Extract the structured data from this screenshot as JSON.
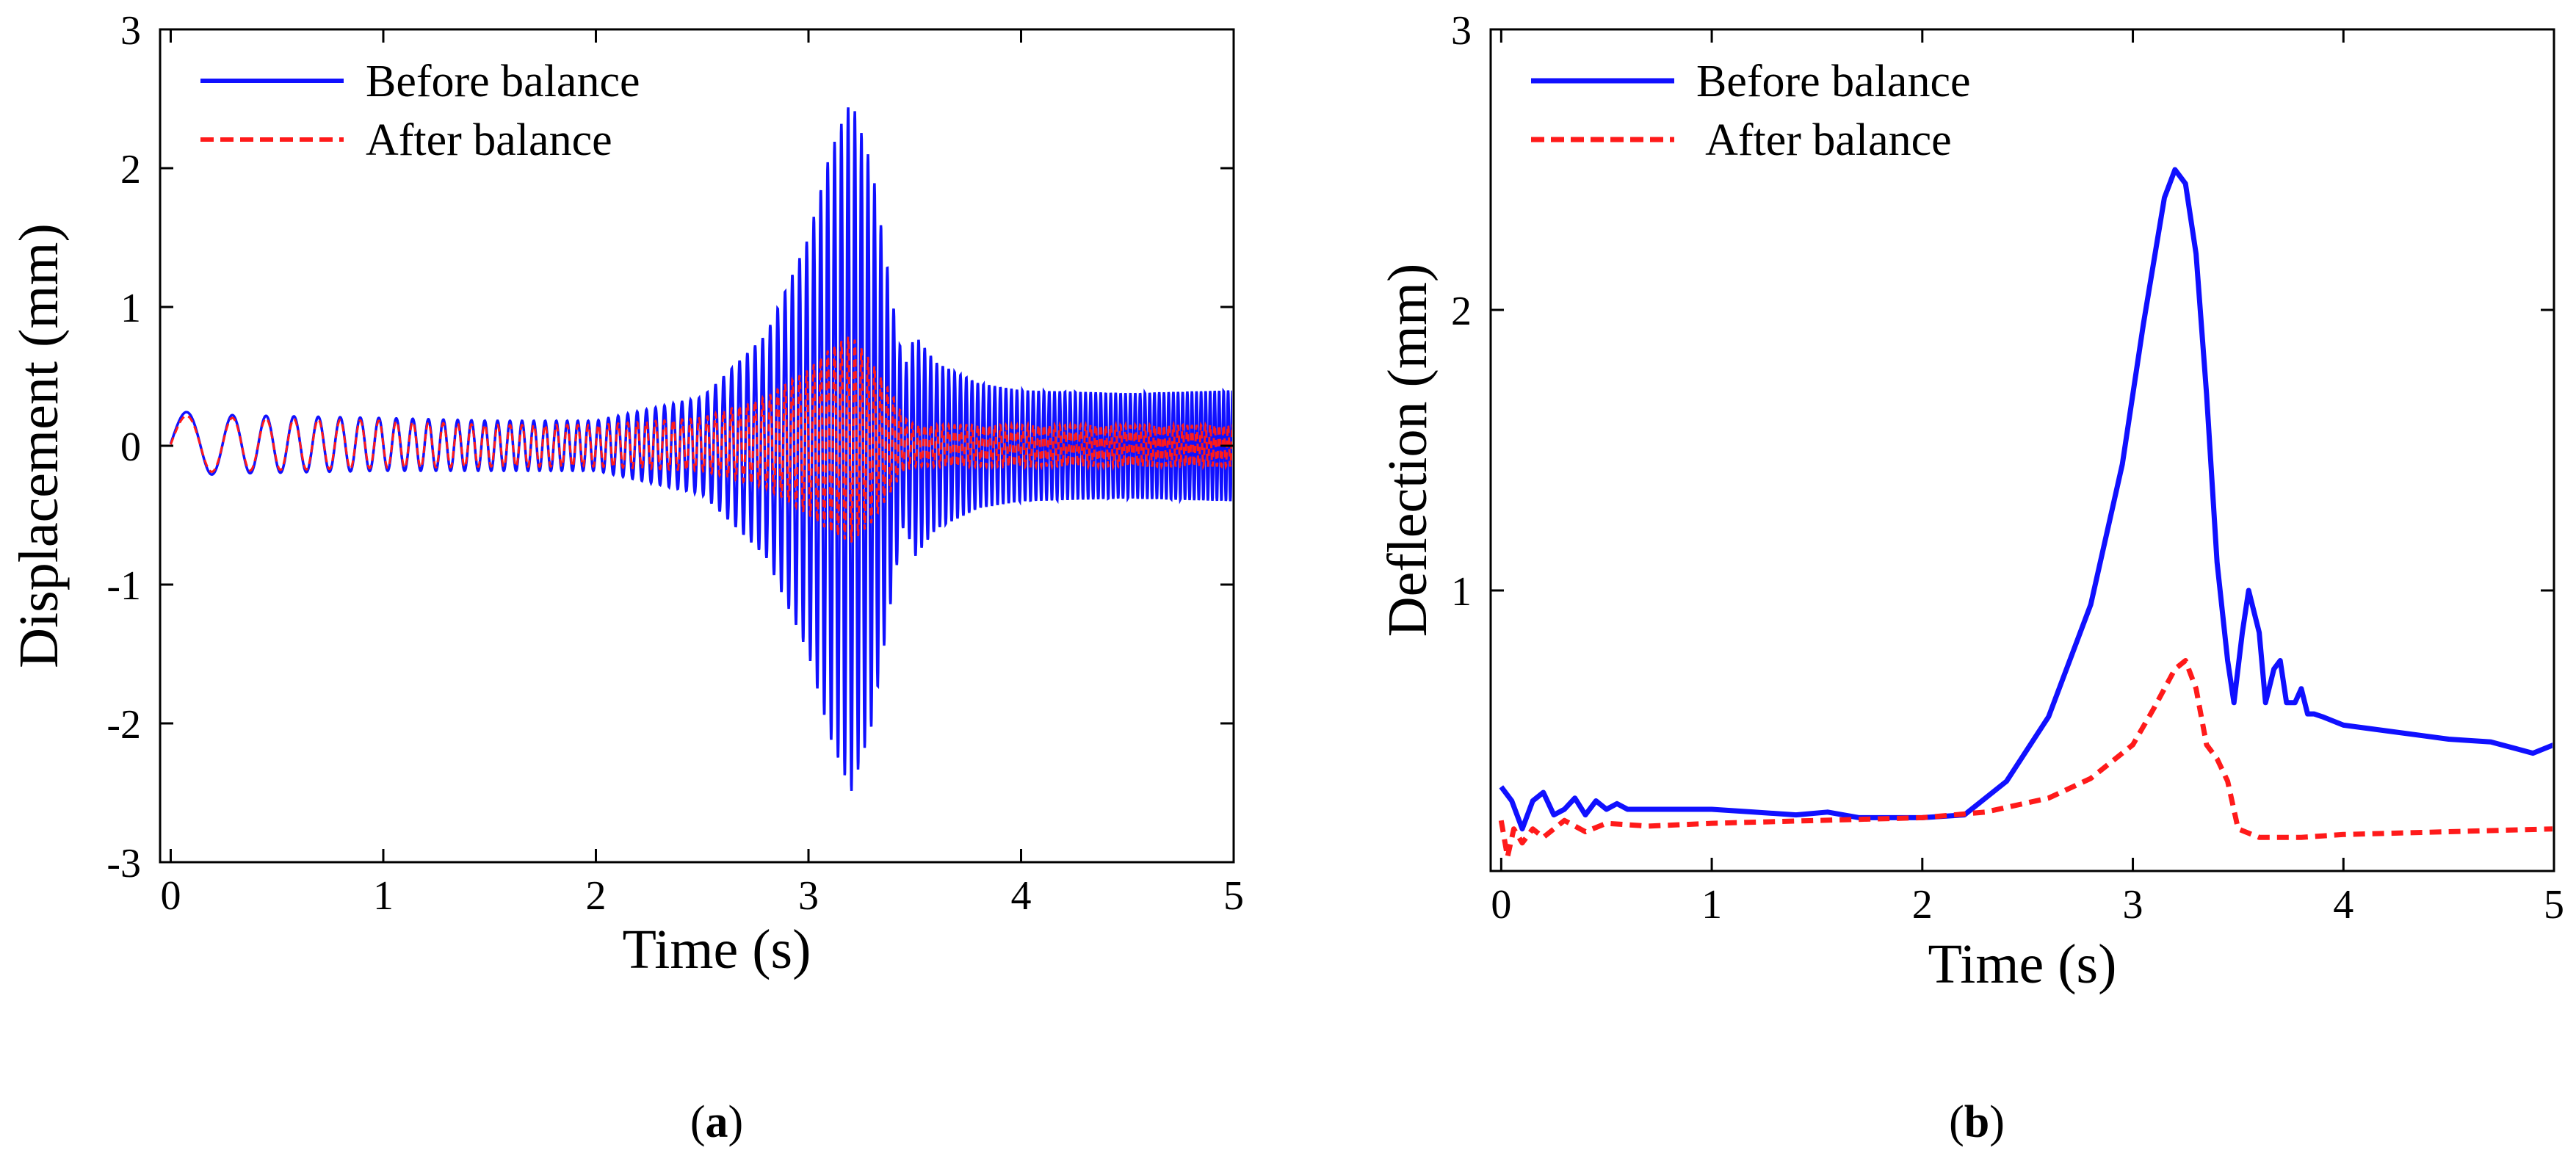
{
  "figure": {
    "panel_labels": [
      {
        "open": "(",
        "letter": "a",
        "close": ")"
      },
      {
        "open": "(",
        "letter": "b",
        "close": ")"
      }
    ]
  },
  "colors": {
    "before": "#1010ff",
    "after": "#ff1a1a",
    "axis": "#000000"
  },
  "chart_data": [
    {
      "type": "line",
      "panel": "a",
      "title": "",
      "xlabel": "Time (s)",
      "ylabel": "Displacement  (mm)",
      "xlim": [
        -0.05,
        5
      ],
      "ylim": [
        -3,
        3
      ],
      "xticks": [
        0,
        1,
        2,
        3,
        4,
        5
      ],
      "yticks": [
        -3,
        -2,
        -1,
        0,
        1,
        2,
        3
      ],
      "legend": {
        "position": "top-left",
        "entries": [
          {
            "label": "Before balance",
            "style": "solid",
            "color": "#1010ff"
          },
          {
            "label": "After balance",
            "style": "dashed",
            "color": "#ff1a1a"
          }
        ]
      },
      "series": [
        {
          "name": "Before balance",
          "kind": "oscillation_envelope",
          "envelope_time": [
            0,
            0.3,
            1,
            1.5,
            2,
            2.5,
            2.8,
            3.0,
            3.1,
            3.2,
            3.3,
            3.4,
            3.45,
            3.5,
            3.6,
            3.8,
            4.0,
            4.5,
            5.0
          ],
          "upper": [
            0.25,
            0.22,
            0.2,
            0.18,
            0.18,
            0.35,
            0.8,
            1.5,
            2.1,
            2.5,
            2.0,
            1.0,
            0.55,
            0.8,
            0.6,
            0.45,
            0.4,
            0.38,
            0.4
          ],
          "lower": [
            -0.22,
            -0.2,
            -0.18,
            -0.18,
            -0.18,
            -0.35,
            -0.8,
            -1.5,
            -2.1,
            -2.5,
            -2.0,
            -1.0,
            -0.55,
            -0.8,
            -0.6,
            -0.45,
            -0.4,
            -0.38,
            -0.4
          ]
        },
        {
          "name": "After balance",
          "kind": "oscillation_envelope",
          "envelope_time": [
            0,
            0.3,
            1,
            1.5,
            2,
            2.5,
            2.8,
            3.0,
            3.1,
            3.2,
            3.3,
            3.4,
            3.45,
            3.5,
            4.0,
            5.0
          ],
          "upper": [
            0.22,
            0.2,
            0.18,
            0.15,
            0.15,
            0.2,
            0.35,
            0.55,
            0.7,
            0.8,
            0.6,
            0.35,
            0.2,
            0.15,
            0.15,
            0.15
          ],
          "lower": [
            -0.2,
            -0.18,
            -0.16,
            -0.15,
            -0.15,
            -0.18,
            -0.3,
            -0.5,
            -0.62,
            -0.7,
            -0.55,
            -0.3,
            -0.18,
            -0.15,
            -0.15,
            -0.15
          ]
        }
      ]
    },
    {
      "type": "line",
      "panel": "b",
      "title": "",
      "xlabel": "Time (s)",
      "ylabel": "Deflection  (mm)",
      "xlim": [
        -0.05,
        5
      ],
      "ylim": [
        0,
        3
      ],
      "xticks": [
        0,
        1,
        2,
        3,
        4,
        5
      ],
      "yticks": [
        1,
        2,
        3
      ],
      "legend": {
        "position": "top-left",
        "entries": [
          {
            "label": "Before balance",
            "style": "solid",
            "color": "#1010ff"
          },
          {
            "label": " After balance",
            "style": "dashed",
            "color": "#ff1a1a"
          }
        ]
      },
      "series": [
        {
          "name": "Before balance",
          "x": [
            0,
            0.05,
            0.1,
            0.15,
            0.2,
            0.25,
            0.3,
            0.35,
            0.4,
            0.45,
            0.5,
            0.55,
            0.6,
            0.8,
            1.0,
            1.2,
            1.4,
            1.55,
            1.7,
            2.0,
            2.2,
            2.4,
            2.6,
            2.8,
            2.95,
            3.05,
            3.15,
            3.2,
            3.25,
            3.3,
            3.35,
            3.4,
            3.45,
            3.48,
            3.52,
            3.55,
            3.6,
            3.63,
            3.67,
            3.7,
            3.73,
            3.77,
            3.8,
            3.83,
            3.86,
            3.9,
            4.0,
            4.2,
            4.5,
            4.7,
            4.85,
            4.9,
            5.0
          ],
          "y": [
            0.3,
            0.25,
            0.15,
            0.25,
            0.28,
            0.2,
            0.22,
            0.26,
            0.2,
            0.25,
            0.22,
            0.24,
            0.22,
            0.22,
            0.22,
            0.21,
            0.2,
            0.21,
            0.19,
            0.19,
            0.2,
            0.32,
            0.55,
            0.95,
            1.45,
            1.95,
            2.4,
            2.5,
            2.45,
            2.2,
            1.7,
            1.1,
            0.75,
            0.6,
            0.85,
            1.0,
            0.85,
            0.6,
            0.72,
            0.75,
            0.6,
            0.6,
            0.65,
            0.56,
            0.56,
            0.55,
            0.52,
            0.5,
            0.47,
            0.46,
            0.43,
            0.42,
            0.45
          ]
        },
        {
          "name": "After balance",
          "x": [
            0,
            0.03,
            0.06,
            0.1,
            0.15,
            0.2,
            0.3,
            0.4,
            0.5,
            0.7,
            1.0,
            1.5,
            2.0,
            2.3,
            2.6,
            2.8,
            3.0,
            3.1,
            3.2,
            3.25,
            3.3,
            3.35,
            3.4,
            3.45,
            3.5,
            3.6,
            3.8,
            4.0,
            4.5,
            5.0
          ],
          "y": [
            0.18,
            0.05,
            0.15,
            0.1,
            0.15,
            0.12,
            0.18,
            0.14,
            0.17,
            0.16,
            0.17,
            0.18,
            0.19,
            0.21,
            0.26,
            0.33,
            0.45,
            0.58,
            0.72,
            0.75,
            0.65,
            0.45,
            0.4,
            0.32,
            0.15,
            0.12,
            0.12,
            0.13,
            0.14,
            0.15
          ]
        }
      ]
    }
  ]
}
